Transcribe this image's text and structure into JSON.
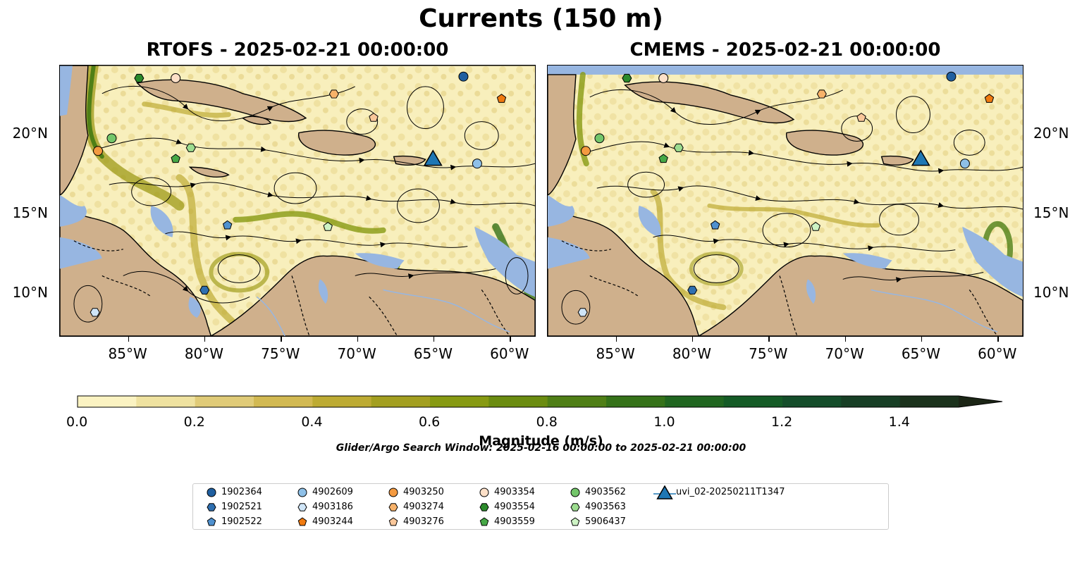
{
  "title": "Currents (150 m)",
  "panels": [
    {
      "title": "RTOFS - 2025-02-21 00:00:00"
    },
    {
      "title": "CMEMS - 2025-02-21 00:00:00"
    }
  ],
  "axes": {
    "lon_labels": [
      "85°W",
      "80°W",
      "75°W",
      "70°W",
      "65°W",
      "60°W"
    ],
    "lat_labels": [
      "20°N",
      "15°N",
      "10°N"
    ],
    "lon_range": [
      -89.5,
      -58.3
    ],
    "lat_range": [
      7.2,
      24.3
    ]
  },
  "colorbar": {
    "label": "Magnitude (m/s)",
    "ticks": [
      "0.0",
      "0.2",
      "0.4",
      "0.6",
      "0.8",
      "1.0",
      "1.2",
      "1.4"
    ],
    "range": [
      0,
      1.5
    ],
    "extend": "max",
    "colors": [
      "#fbf3c2",
      "#efe2a0",
      "#e0cb78",
      "#d2b952",
      "#bdab33",
      "#a39f20",
      "#879a12",
      "#6b8c10",
      "#4f7f16",
      "#357219",
      "#206620",
      "#145b26",
      "#144d2a",
      "#173f25",
      "#1b321c",
      "#1b2515"
    ]
  },
  "search_window": "Glider/Argo Search Window: 2025-02-16 00:00:00 to 2025-02-21 00:00:00",
  "colors": {
    "land": "#cfb08c",
    "ocean": "#97b6e1",
    "stream": "#000000"
  },
  "legend": {
    "items": [
      {
        "id": "1902364",
        "shape": "circle",
        "color": "#1f5fa0"
      },
      {
        "id": "1902521",
        "shape": "hexagon",
        "color": "#2f6fb0"
      },
      {
        "id": "1902522",
        "shape": "pentagon",
        "color": "#4f91cf"
      },
      {
        "id": "4902609",
        "shape": "circle",
        "color": "#8ec0e8"
      },
      {
        "id": "4903186",
        "shape": "hexagon",
        "color": "#cfe5f7"
      },
      {
        "id": "4903244",
        "shape": "pentagon",
        "color": "#f07a10"
      },
      {
        "id": "4903250",
        "shape": "circle",
        "color": "#f49a40"
      },
      {
        "id": "4903274",
        "shape": "hexagon",
        "color": "#f7b26a"
      },
      {
        "id": "4903276",
        "shape": "pentagon",
        "color": "#f9c79a"
      },
      {
        "id": "4903354",
        "shape": "circle",
        "color": "#fde0c8"
      },
      {
        "id": "4903554",
        "shape": "hexagon",
        "color": "#2b8a2b"
      },
      {
        "id": "4903559",
        "shape": "pentagon",
        "color": "#46a846"
      },
      {
        "id": "4903562",
        "shape": "circle",
        "color": "#73c66a"
      },
      {
        "id": "4903563",
        "shape": "hexagon",
        "color": "#9cdc8f"
      },
      {
        "id": "5906437",
        "shape": "pentagon",
        "color": "#cdf3c4"
      },
      {
        "id": "uvi_02-20250211T1347",
        "shape": "triangle",
        "color": "#1f77b4"
      }
    ]
  },
  "markers_rtofs": [
    {
      "id": "1902364",
      "lon": -63.0,
      "lat": 23.6
    },
    {
      "id": "1902521",
      "lon": -80.0,
      "lat": 10.1
    },
    {
      "id": "1902522",
      "lon": -78.5,
      "lat": 14.2
    },
    {
      "id": "4902609",
      "lon": -62.1,
      "lat": 18.1
    },
    {
      "id": "4903186",
      "lon": -87.2,
      "lat": 8.7
    },
    {
      "id": "4903244",
      "lon": -60.5,
      "lat": 22.2
    },
    {
      "id": "4903250",
      "lon": -87.0,
      "lat": 18.9
    },
    {
      "id": "4903274",
      "lon": -71.5,
      "lat": 22.5
    },
    {
      "id": "4903276",
      "lon": -68.9,
      "lat": 21.0
    },
    {
      "id": "4903354",
      "lon": -81.9,
      "lat": 23.5
    },
    {
      "id": "4903554",
      "lon": -84.3,
      "lat": 23.5
    },
    {
      "id": "4903559",
      "lon": -81.9,
      "lat": 18.4
    },
    {
      "id": "4903562",
      "lon": -86.1,
      "lat": 19.7
    },
    {
      "id": "4903563",
      "lon": -80.9,
      "lat": 19.1
    },
    {
      "id": "5906437",
      "lon": -71.9,
      "lat": 14.1
    },
    {
      "id": "uvi_02-20250211T1347",
      "lon": -65.0,
      "lat": 18.3
    }
  ],
  "markers_cmems": [
    {
      "id": "1902364",
      "lon": -63.0,
      "lat": 23.6
    },
    {
      "id": "1902521",
      "lon": -80.0,
      "lat": 10.1
    },
    {
      "id": "1902522",
      "lon": -78.5,
      "lat": 14.2
    },
    {
      "id": "4902609",
      "lon": -62.1,
      "lat": 18.1
    },
    {
      "id": "4903186",
      "lon": -87.2,
      "lat": 8.7
    },
    {
      "id": "4903244",
      "lon": -60.5,
      "lat": 22.2
    },
    {
      "id": "4903250",
      "lon": -87.0,
      "lat": 18.9
    },
    {
      "id": "4903274",
      "lon": -71.5,
      "lat": 22.5
    },
    {
      "id": "4903276",
      "lon": -68.9,
      "lat": 21.0
    },
    {
      "id": "4903354",
      "lon": -81.9,
      "lat": 23.5
    },
    {
      "id": "4903554",
      "lon": -84.3,
      "lat": 23.5
    },
    {
      "id": "4903559",
      "lon": -81.9,
      "lat": 18.4
    },
    {
      "id": "4903562",
      "lon": -86.1,
      "lat": 19.7
    },
    {
      "id": "4903563",
      "lon": -80.9,
      "lat": 19.1
    },
    {
      "id": "5906437",
      "lon": -71.9,
      "lat": 14.1
    },
    {
      "id": "uvi_02-20250211T1347",
      "lon": -65.0,
      "lat": 18.3
    }
  ]
}
